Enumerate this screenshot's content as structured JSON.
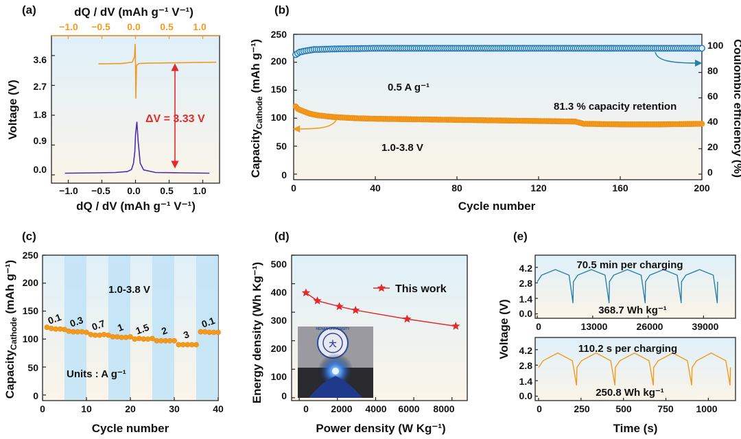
{
  "colors": {
    "orange": "#f39a1e",
    "blue_ce": "#1f77b4",
    "purple": "#4b2fa8",
    "red": "#e12b2b",
    "teal": "#2a7fa8",
    "panel_top": "#dff0fa",
    "panel_bottom": "#fbf4e8",
    "stripe": "#bfe3f7"
  },
  "panels": {
    "a": {
      "label": "(a)",
      "top_xlabel": "dQ / dV (mAh g⁻¹ V⁻¹)",
      "xlabel": "dQ / dV (mAh g⁻¹ V⁻¹)",
      "ylabel": "Voltage (V)",
      "xticks": [
        "−1.0",
        "−0.5",
        "0.0",
        "0.5",
        "1.0"
      ],
      "yticks": [
        "0.0",
        "0.9",
        "1.8",
        "2.7",
        "3.6"
      ],
      "annotation": "ΔV = 3.33 V"
    },
    "b": {
      "label": "(b)",
      "xlabel": "Cycle number",
      "ylabel_main": "Capacity",
      "ylabel_sub": "Cathode",
      "ylabel_unit": " (mAh g⁻¹)",
      "y2label": "Coulombic efficiency (%)",
      "xticks": [
        "0",
        "40",
        "80",
        "120",
        "160",
        "200"
      ],
      "yticks": [
        "0",
        "50",
        "100",
        "150",
        "200",
        "250"
      ],
      "y2ticks": [
        "0",
        "20",
        "40",
        "60",
        "80",
        "100"
      ],
      "ann_rate": "0.5 A g⁻¹",
      "ann_retention": "81.3 % capacity retention",
      "ann_window": "1.0-3.8 V"
    },
    "c": {
      "label": "(c)",
      "xlabel": "Cycle number",
      "ylabel_main": "Capacity",
      "ylabel_sub": "Cathode",
      "ylabel_unit": " (mAh g⁻¹)",
      "xticks": [
        "0",
        "10",
        "20",
        "30",
        "40"
      ],
      "yticks": [
        "0",
        "50",
        "100",
        "150",
        "200",
        "250"
      ],
      "ann_window": "1.0-3.8 V",
      "ann_units": "Units :  A g⁻¹"
    },
    "d": {
      "label": "(d)",
      "xlabel": "Power density (W Kg⁻¹)",
      "ylabel": "Energy density (Wh Kg⁻¹)",
      "xticks": [
        "0",
        "2000",
        "4000",
        "6000",
        "8000"
      ],
      "yticks": [
        "0",
        "100",
        "200",
        "300",
        "400",
        "500"
      ],
      "legend": "This work",
      "photo_text": "HENAN UNIVERSITY"
    },
    "e": {
      "label": "(e)",
      "ylabel": "Voltage (V)",
      "xlabel": "Time (s)",
      "top_xticks": [
        "0",
        "13000",
        "26000",
        "39000"
      ],
      "top_yticks": [
        "0.0",
        "1.4",
        "2.8",
        "4.2"
      ],
      "top_title": "70.5 min per charging",
      "top_energy": "368.7 Wh kg⁻¹",
      "bot_xticks": [
        "0",
        "250",
        "500",
        "750",
        "1000"
      ],
      "bot_yticks": [
        "0.0",
        "1.4",
        "2.8",
        "4.2"
      ],
      "bot_title": "110.2 s per charging",
      "bot_energy": "250.8 Wh kg⁻¹"
    }
  },
  "chart_data": [
    {
      "type": "line",
      "panel": "a",
      "title": "",
      "xlabel": "dQ / dV (mAh g⁻¹ V⁻¹)",
      "ylabel": "Voltage (V)",
      "xlim": [
        -1.25,
        1.25
      ],
      "ylim": [
        -0.25,
        4.2
      ],
      "series": [
        {
          "x": [
            -1.05,
            -0.6,
            -0.3,
            -0.12,
            -0.06,
            -0.03,
            -0.01,
            0.0,
            0.02,
            0.04,
            0.07,
            0.12,
            0.3,
            0.7,
            1.1
          ],
          "y": [
            0.05,
            0.06,
            0.07,
            0.1,
            0.16,
            0.35,
            0.7,
            1.2,
            1.6,
            1.0,
            0.35,
            0.15,
            0.07,
            0.06,
            0.05
          ]
        },
        {
          "x": [
            -0.55,
            -0.2,
            -0.05,
            -0.015,
            -0.005,
            0.0,
            0.005,
            0.015,
            0.05,
            0.2,
            0.55,
            1.2
          ],
          "y": [
            3.35,
            3.36,
            3.4,
            3.55,
            3.95,
            3.4,
            2.3,
            3.3,
            3.36,
            3.37,
            3.38,
            3.4
          ]
        }
      ]
    },
    {
      "type": "scatter",
      "panel": "b",
      "title": "",
      "xlabel": "Cycle number",
      "ylabel": "Capacity Cathode (mAh g⁻¹)",
      "y2label": "Coulombic efficiency (%)",
      "xlim": [
        0,
        200
      ],
      "ylim": [
        -10,
        250
      ],
      "y2lim": [
        -4.4,
        110
      ],
      "capacity": {
        "x": [
          1,
          2,
          3,
          5,
          8,
          12,
          20,
          30,
          40,
          60,
          80,
          100,
          120,
          138,
          142,
          160,
          180,
          200
        ],
        "y": [
          121,
          117,
          115,
          112,
          108,
          105,
          102,
          100,
          99,
          98,
          97,
          96,
          95,
          94,
          90,
          89,
          89,
          90
        ]
      },
      "coulombic_efficiency": {
        "x": [
          1,
          3,
          6,
          10,
          20,
          40,
          80,
          120,
          160,
          180,
          200
        ],
        "y": [
          94,
          96,
          97,
          98,
          98.5,
          99,
          99,
          99,
          99,
          99,
          99
        ]
      }
    },
    {
      "type": "line",
      "panel": "c",
      "title": "",
      "xlabel": "Cycle number",
      "ylabel": "Capacity Cathode (mAh g⁻¹)",
      "xlim": [
        0,
        40
      ],
      "ylim": [
        -10,
        250
      ],
      "rates": [
        "0.1",
        "0.3",
        "0.7",
        "1",
        "1.5",
        "2",
        "3",
        "0.1"
      ],
      "x": [
        1,
        2,
        3,
        4,
        5,
        6,
        7,
        8,
        9,
        10,
        11,
        12,
        13,
        14,
        15,
        16,
        17,
        18,
        19,
        20,
        21,
        22,
        23,
        24,
        25,
        26,
        27,
        28,
        29,
        30,
        31,
        32,
        33,
        34,
        35,
        36,
        37,
        38,
        39,
        40
      ],
      "y": [
        121,
        119,
        118,
        118,
        117,
        114,
        113,
        113,
        113,
        112,
        108,
        107,
        107,
        108,
        107,
        104,
        104,
        103,
        103,
        104,
        100,
        101,
        100,
        100,
        101,
        97,
        97,
        97,
        97,
        97,
        90,
        90,
        90,
        90,
        90,
        113,
        113,
        112,
        112,
        112
      ]
    },
    {
      "type": "line",
      "panel": "d",
      "title": "",
      "xlabel": "Power density (W Kg⁻¹)",
      "ylabel": "Energy density (Wh Kg⁻¹)",
      "xlim": [
        -400,
        8800
      ],
      "ylim": [
        -10,
        500
      ],
      "series": [
        {
          "name": "This work",
          "x": [
            350,
            950,
            2100,
            2950,
            5650,
            8200
          ],
          "y": [
            368,
            340,
            320,
            307,
            276,
            251
          ]
        }
      ]
    },
    {
      "type": "line",
      "panel": "e-top",
      "title": "70.5 min per charging",
      "xlabel": "Time (s)",
      "ylabel": "Voltage (V)",
      "xlim": [
        -500,
        46500
      ],
      "ylim": [
        -0.4,
        5.3
      ],
      "cycles": 5,
      "cycle_period": 8460,
      "v_min": 1.0,
      "v_start": 2.9,
      "v_peak": 4.0
    },
    {
      "type": "line",
      "panel": "e-bottom",
      "title": "110.2 s per charging",
      "xlabel": "Time (s)",
      "ylabel": "Voltage (V)",
      "xlim": [
        -20,
        1160
      ],
      "ylim": [
        -0.4,
        5.3
      ],
      "cycles": 5,
      "cycle_period": 226,
      "v_min": 1.0,
      "v_start": 2.6,
      "v_peak": 3.9
    }
  ]
}
